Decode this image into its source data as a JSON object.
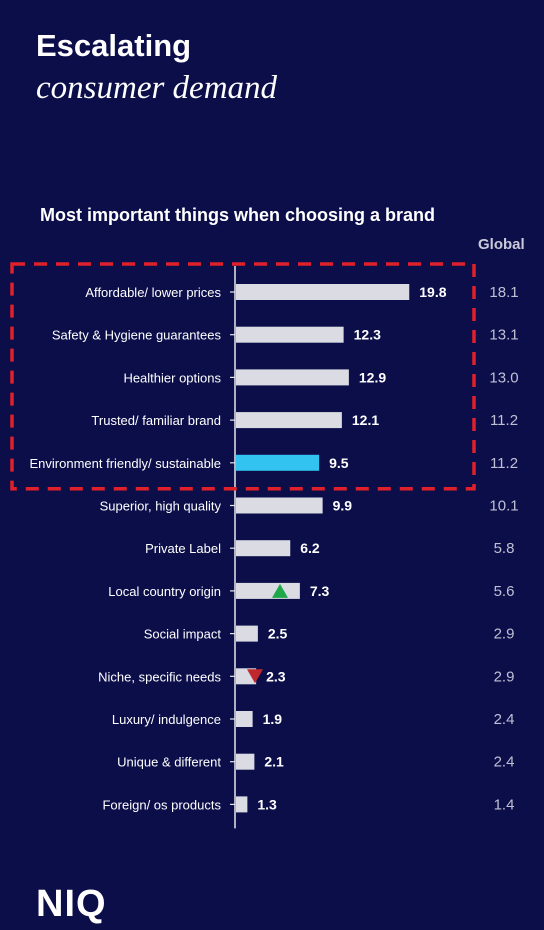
{
  "header": {
    "title_line1": "Escalating",
    "title_line2": "consumer demand"
  },
  "brand": {
    "logo_text": "NIQ"
  },
  "chart_data": {
    "type": "bar",
    "orientation": "horizontal",
    "title": "Most important things when choosing a brand",
    "secondary_column_header": "Global",
    "categories": [
      "Affordable/ lower prices",
      "Safety & Hygiene guarantees",
      "Healthier options",
      "Trusted/ familiar brand",
      "Environment friendly/ sustainable",
      "Superior, high quality",
      "Private Label",
      "Local country origin",
      "Social impact",
      "Niche, specific needs",
      "Luxury/ indulgence",
      "Unique & different",
      "Foreign/ os products"
    ],
    "values": [
      19.8,
      12.3,
      12.9,
      12.1,
      9.5,
      9.9,
      6.2,
      7.3,
      2.5,
      2.3,
      1.9,
      2.1,
      1.3
    ],
    "global_values": [
      "18.1",
      "13.1",
      "13.0",
      "11.2",
      "11.2",
      "10.1",
      "5.8",
      "5.6",
      "2.9",
      "2.9",
      "2.4",
      "2.4",
      "1.4"
    ],
    "highlight_category": "Environment friendly/ sustainable",
    "highlight_box_categories": [
      "Affordable/ lower prices",
      "Safety & Hygiene guarantees",
      "Healthier options",
      "Trusted/ familiar brand",
      "Environment friendly/ sustainable"
    ],
    "trend_markers": [
      {
        "category": "Local country origin",
        "direction": "up",
        "color": "#1fa84a"
      },
      {
        "category": "Niche, specific needs",
        "direction": "down",
        "color": "#c0282d"
      }
    ],
    "xlim": [
      0,
      20
    ],
    "grid": false,
    "legend": "none",
    "colors": {
      "bar": "#dadbe3",
      "highlight_bar": "#33c3f0",
      "highlight_box": "#e0202a",
      "background": "#0c0e4a"
    }
  }
}
